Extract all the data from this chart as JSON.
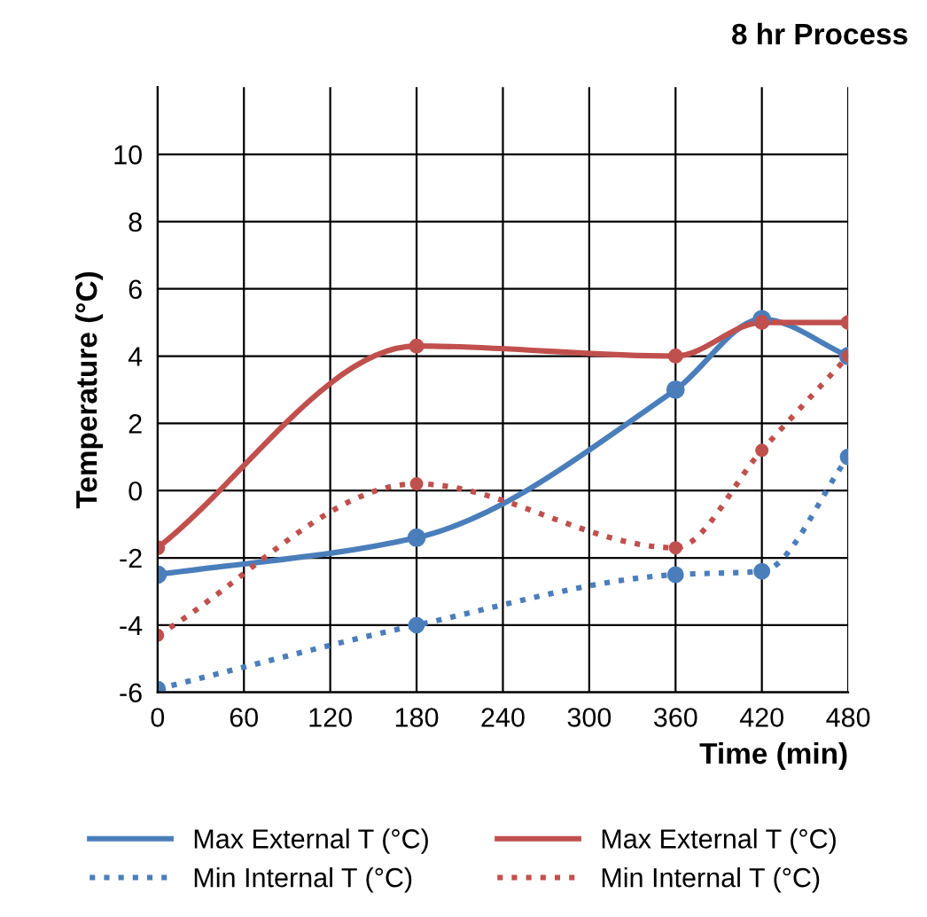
{
  "chart_data": {
    "type": "line",
    "title": "8 hr Process",
    "xlabel": "Time (min)",
    "ylabel": "Temperature (°C)",
    "x": [
      0,
      180,
      360,
      420,
      480
    ],
    "series": [
      {
        "name": "Max External T (°C)",
        "color": "#4a7ebb",
        "line_style": "solid",
        "values": [
          -2.5,
          -1.4,
          3.0,
          5.1,
          4.0
        ]
      },
      {
        "name": "Min Internal T (°C)",
        "color": "#4a7ebb",
        "line_style": "dotted",
        "values": [
          -5.9,
          -4.0,
          -2.5,
          -2.4,
          1.0
        ]
      },
      {
        "name": "Max External T (°C)",
        "color": "#c0504d",
        "line_style": "solid",
        "values": [
          -1.7,
          4.3,
          4.0,
          5.0,
          5.0
        ]
      },
      {
        "name": "Min Internal T (°C)",
        "color": "#c0504d",
        "line_style": "dotted",
        "values": [
          -4.3,
          0.2,
          -1.7,
          1.2,
          4.0
        ]
      }
    ],
    "xlim": [
      0,
      480
    ],
    "xticks": [
      0,
      60,
      120,
      180,
      240,
      300,
      360,
      420,
      480
    ],
    "ylim": [
      -6,
      12
    ],
    "yticks": [
      -6,
      -4,
      -2,
      0,
      2,
      4,
      6,
      8,
      10
    ],
    "grid": true,
    "legend": "bottom",
    "marker": "circle"
  }
}
